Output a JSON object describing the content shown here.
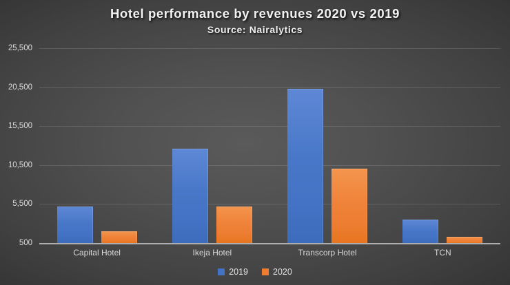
{
  "header": {
    "title": "Hotel performance by revenues 2020 vs 2019",
    "subtitle": "Source: Nairalytics"
  },
  "colors": {
    "series_2019": "#4472C4",
    "series_2020": "#ED7D31",
    "background_center": "#5a5a5a",
    "background_edge": "#1e1e1e",
    "text": "#f2f2f2",
    "tick_text": "#dddddd",
    "gridline": "#6a6a6a",
    "axis_line": "#aeaeae"
  },
  "chart_data": {
    "type": "bar",
    "title": "Hotel performance by revenues 2020 vs 2019",
    "subtitle": "Source: Nairalytics",
    "categories": [
      "Capital Hotel",
      "Ikeja Hotel",
      "Transcorp Hotel",
      "TCN"
    ],
    "series": [
      {
        "name": "2019",
        "color": "#4472C4",
        "values": [
          5200,
          12600,
          20300,
          3500
        ]
      },
      {
        "name": "2020",
        "color": "#ED7D31",
        "values": [
          2000,
          5150,
          10050,
          1270
        ]
      }
    ],
    "xlabel": "",
    "ylabel": "",
    "ylim": [
      500,
      25500
    ],
    "yticks": [
      {
        "value": 500,
        "label": "500"
      },
      {
        "value": 5500,
        "label": "5,500"
      },
      {
        "value": 10500,
        "label": "10,500"
      },
      {
        "value": 15500,
        "label": "15,500"
      },
      {
        "value": 20500,
        "label": "20,500"
      },
      {
        "value": 25500,
        "label": "25,500"
      }
    ],
    "grid": "horizontal",
    "legend_position": "bottom"
  }
}
